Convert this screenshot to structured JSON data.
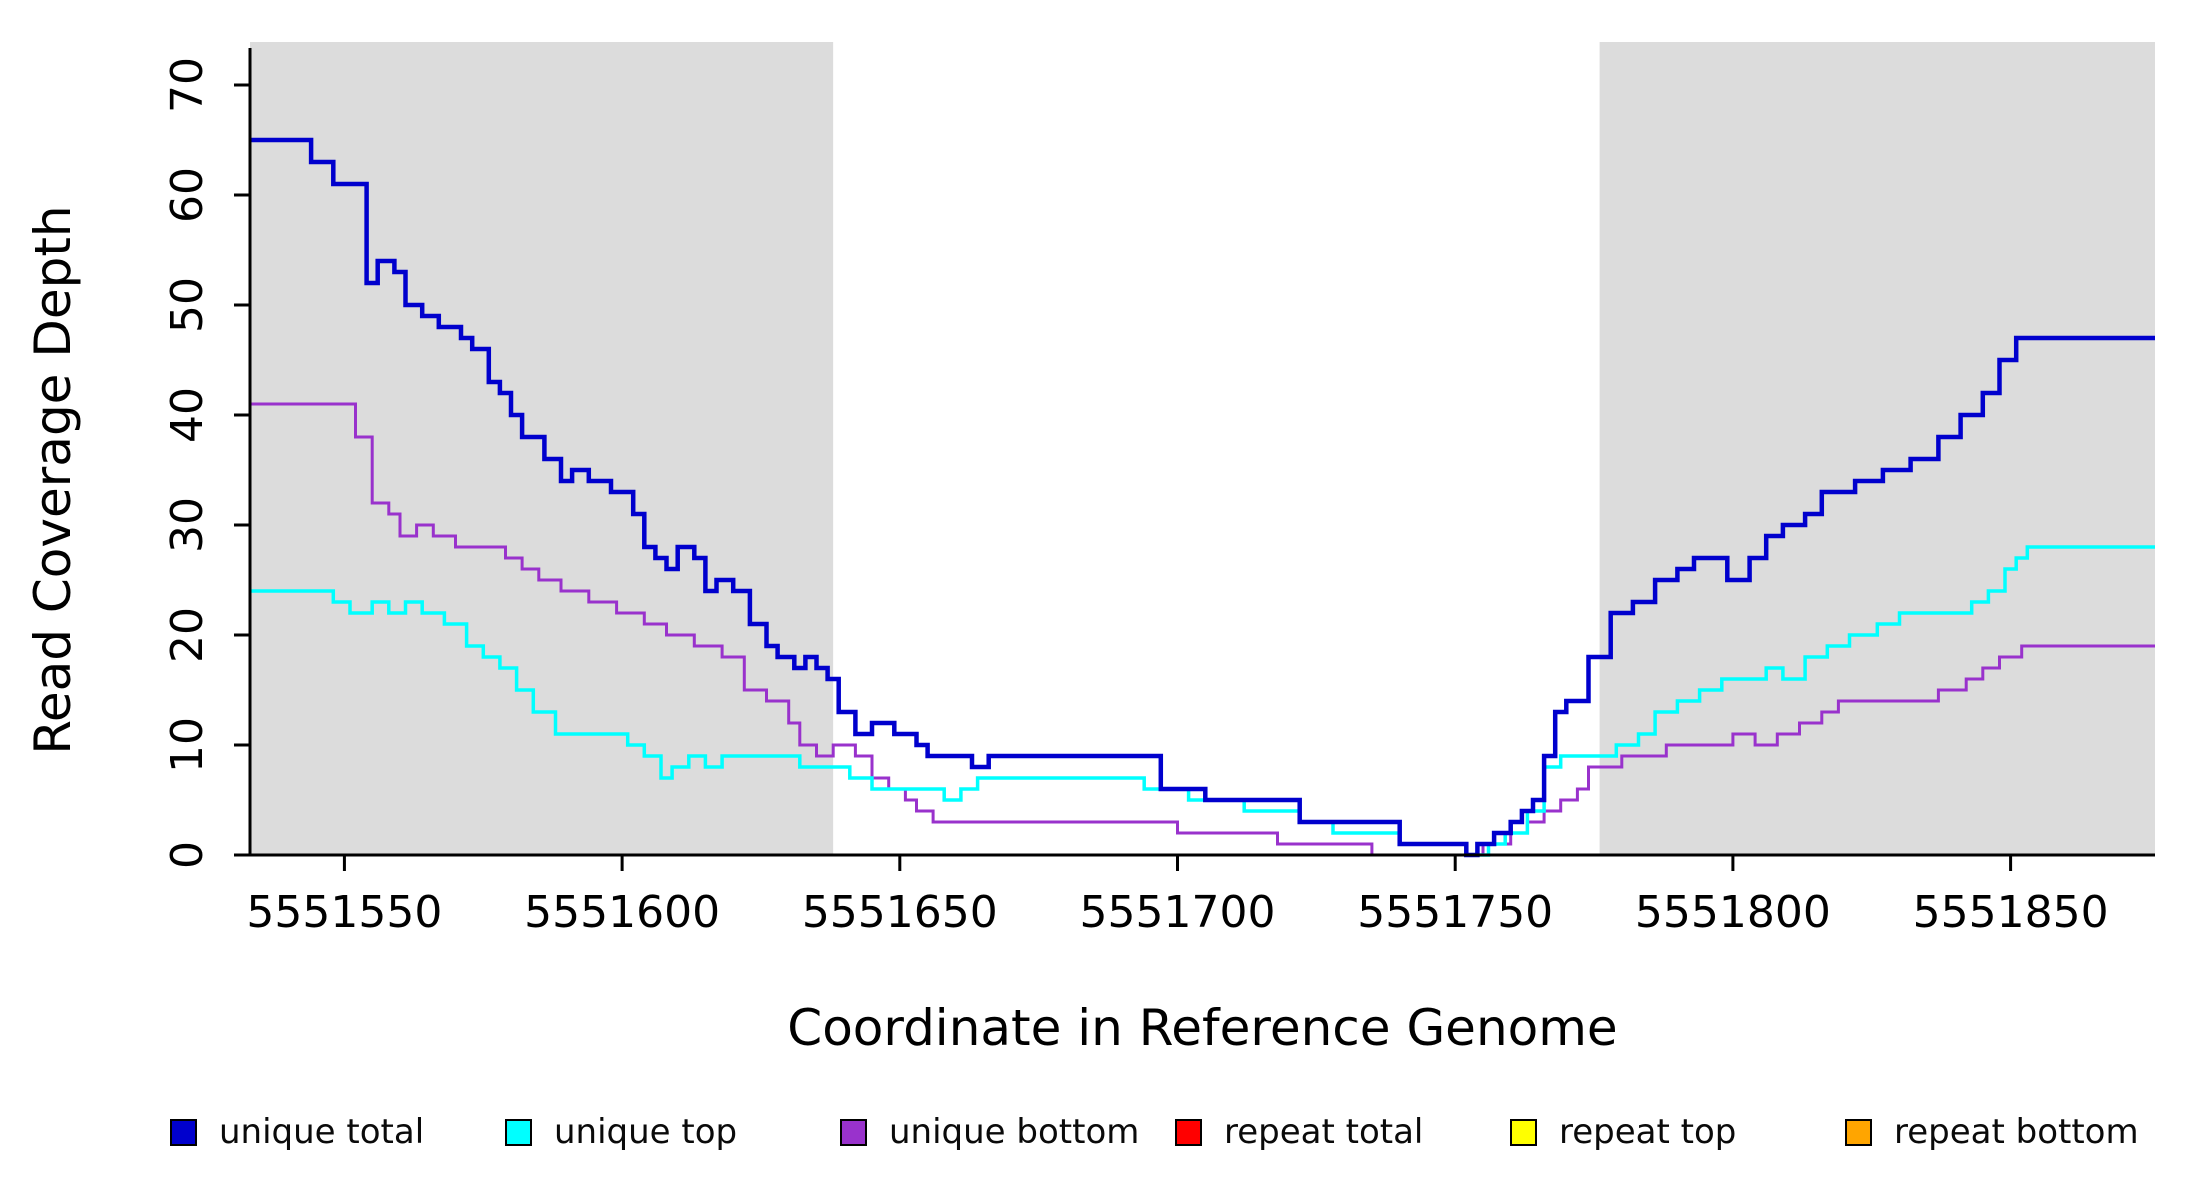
{
  "figure": {
    "kind": "step-line coverage plot"
  },
  "legend": {
    "items": [
      {
        "id": "unique-total",
        "label": "unique total",
        "color": "#0000CD"
      },
      {
        "id": "unique-top",
        "label": "unique top",
        "color": "#00FFFF"
      },
      {
        "id": "unique-bottom",
        "label": "unique bottom",
        "color": "#9932CC"
      },
      {
        "id": "repeat-total",
        "label": "repeat total",
        "color": "#FF0000"
      },
      {
        "id": "repeat-top",
        "label": "repeat top",
        "color": "#FFFF00"
      },
      {
        "id": "repeat-bottom",
        "label": "repeat bottom",
        "color": "#FFA500"
      }
    ]
  },
  "chart_data": {
    "type": "line",
    "title": "",
    "xlabel": "Coordinate in Reference Genome",
    "ylabel": "Read Coverage Depth",
    "xlim": [
      5551533,
      5551876
    ],
    "ylim": [
      0,
      70
    ],
    "xticks": [
      5551550,
      5551600,
      5551650,
      5551700,
      5551750,
      5551800,
      5551850
    ],
    "yticks": [
      0,
      10,
      20,
      30,
      40,
      50,
      60,
      70
    ],
    "grid": false,
    "legend_position": "bottom",
    "shaded_regions": [
      [
        5551533,
        5551638
      ],
      [
        5551776,
        5551876
      ]
    ],
    "colors": {
      "shade": "#DCDCDC",
      "axis": "#000000"
    },
    "series": [
      {
        "id": "repeat-total",
        "name": "repeat total",
        "color": "#FF0000",
        "width": 3,
        "points": [
          [
            5551533,
            0
          ]
        ]
      },
      {
        "id": "repeat-top",
        "name": "repeat top",
        "color": "#FFFF00",
        "width": 3,
        "points": [
          [
            5551533,
            0
          ]
        ]
      },
      {
        "id": "repeat-bottom",
        "name": "repeat bottom",
        "color": "#FFA500",
        "width": 3,
        "points": [
          [
            5551533,
            0
          ]
        ]
      },
      {
        "id": "unique-bottom",
        "name": "unique bottom",
        "color": "#9932CC",
        "width": 3,
        "points": [
          [
            5551533,
            41
          ],
          [
            5551552,
            38
          ],
          [
            5551555,
            32
          ],
          [
            5551558,
            31
          ],
          [
            5551560,
            29
          ],
          [
            5551563,
            30
          ],
          [
            5551566,
            29
          ],
          [
            5551570,
            28
          ],
          [
            5551579,
            27
          ],
          [
            5551582,
            26
          ],
          [
            5551585,
            25
          ],
          [
            5551589,
            24
          ],
          [
            5551594,
            23
          ],
          [
            5551599,
            22
          ],
          [
            5551604,
            21
          ],
          [
            5551608,
            20
          ],
          [
            5551613,
            19
          ],
          [
            5551618,
            18
          ],
          [
            5551622,
            15
          ],
          [
            5551626,
            14
          ],
          [
            5551630,
            12
          ],
          [
            5551632,
            10
          ],
          [
            5551635,
            9
          ],
          [
            5551638,
            10
          ],
          [
            5551642,
            9
          ],
          [
            5551645,
            7
          ],
          [
            5551648,
            6
          ],
          [
            5551651,
            5
          ],
          [
            5551653,
            4
          ],
          [
            5551656,
            3
          ],
          [
            5551700,
            2
          ],
          [
            5551718,
            1
          ],
          [
            5551735,
            0
          ],
          [
            5551755,
            1
          ],
          [
            5551760,
            2
          ],
          [
            5551763,
            3
          ],
          [
            5551766,
            4
          ],
          [
            5551769,
            5
          ],
          [
            5551772,
            6
          ],
          [
            5551774,
            8
          ],
          [
            5551780,
            9
          ],
          [
            5551788,
            10
          ],
          [
            5551800,
            11
          ],
          [
            5551804,
            10
          ],
          [
            5551808,
            11
          ],
          [
            5551812,
            12
          ],
          [
            5551816,
            13
          ],
          [
            5551819,
            14
          ],
          [
            5551837,
            15
          ],
          [
            5551842,
            16
          ],
          [
            5551845,
            17
          ],
          [
            5551848,
            18
          ],
          [
            5551852,
            19
          ]
        ]
      },
      {
        "id": "unique-top",
        "name": "unique top",
        "color": "#00FFFF",
        "width": 3.5,
        "points": [
          [
            5551533,
            24
          ],
          [
            5551548,
            23
          ],
          [
            5551551,
            22
          ],
          [
            5551555,
            23
          ],
          [
            5551558,
            22
          ],
          [
            5551561,
            23
          ],
          [
            5551564,
            22
          ],
          [
            5551568,
            21
          ],
          [
            5551572,
            19
          ],
          [
            5551575,
            18
          ],
          [
            5551578,
            17
          ],
          [
            5551581,
            15
          ],
          [
            5551584,
            13
          ],
          [
            5551588,
            11
          ],
          [
            5551601,
            10
          ],
          [
            5551604,
            9
          ],
          [
            5551607,
            7
          ],
          [
            5551609,
            8
          ],
          [
            5551612,
            9
          ],
          [
            5551615,
            8
          ],
          [
            5551618,
            9
          ],
          [
            5551632,
            8
          ],
          [
            5551641,
            7
          ],
          [
            5551645,
            6
          ],
          [
            5551658,
            5
          ],
          [
            5551661,
            6
          ],
          [
            5551664,
            7
          ],
          [
            5551694,
            6
          ],
          [
            5551702,
            5
          ],
          [
            5551712,
            4
          ],
          [
            5551722,
            3
          ],
          [
            5551728,
            2
          ],
          [
            5551740,
            1
          ],
          [
            5551752,
            0
          ],
          [
            5551756,
            1
          ],
          [
            5551759,
            2
          ],
          [
            5551763,
            4
          ],
          [
            5551766,
            8
          ],
          [
            5551769,
            9
          ],
          [
            5551779,
            10
          ],
          [
            5551783,
            11
          ],
          [
            5551786,
            13
          ],
          [
            5551790,
            14
          ],
          [
            5551794,
            15
          ],
          [
            5551798,
            16
          ],
          [
            5551806,
            17
          ],
          [
            5551809,
            16
          ],
          [
            5551813,
            18
          ],
          [
            5551817,
            19
          ],
          [
            5551821,
            20
          ],
          [
            5551826,
            21
          ],
          [
            5551830,
            22
          ],
          [
            5551843,
            23
          ],
          [
            5551846,
            24
          ],
          [
            5551849,
            26
          ],
          [
            5551851,
            27
          ],
          [
            5551853,
            28
          ]
        ]
      },
      {
        "id": "unique-total",
        "name": "unique total",
        "color": "#0000CD",
        "width": 4.5,
        "points": [
          [
            5551533,
            65
          ],
          [
            5551544,
            63
          ],
          [
            5551548,
            61
          ],
          [
            5551554,
            52
          ],
          [
            5551556,
            54
          ],
          [
            5551559,
            53
          ],
          [
            5551561,
            50
          ],
          [
            5551564,
            49
          ],
          [
            5551567,
            48
          ],
          [
            5551571,
            47
          ],
          [
            5551573,
            46
          ],
          [
            5551576,
            43
          ],
          [
            5551578,
            42
          ],
          [
            5551580,
            40
          ],
          [
            5551582,
            38
          ],
          [
            5551586,
            36
          ],
          [
            5551589,
            34
          ],
          [
            5551591,
            35
          ],
          [
            5551594,
            34
          ],
          [
            5551598,
            33
          ],
          [
            5551602,
            31
          ],
          [
            5551604,
            28
          ],
          [
            5551606,
            27
          ],
          [
            5551608,
            26
          ],
          [
            5551610,
            28
          ],
          [
            5551613,
            27
          ],
          [
            5551615,
            24
          ],
          [
            5551617,
            25
          ],
          [
            5551620,
            24
          ],
          [
            5551623,
            21
          ],
          [
            5551626,
            19
          ],
          [
            5551628,
            18
          ],
          [
            5551631,
            17
          ],
          [
            5551633,
            18
          ],
          [
            5551635,
            17
          ],
          [
            5551637,
            16
          ],
          [
            5551639,
            13
          ],
          [
            5551642,
            11
          ],
          [
            5551645,
            12
          ],
          [
            5551649,
            11
          ],
          [
            5551653,
            10
          ],
          [
            5551655,
            9
          ],
          [
            5551663,
            8
          ],
          [
            5551666,
            9
          ],
          [
            5551697,
            6
          ],
          [
            5551705,
            5
          ],
          [
            5551722,
            3
          ],
          [
            5551740,
            1
          ],
          [
            5551752,
            0
          ],
          [
            5551754,
            1
          ],
          [
            5551757,
            2
          ],
          [
            5551760,
            3
          ],
          [
            5551762,
            4
          ],
          [
            5551764,
            5
          ],
          [
            5551766,
            9
          ],
          [
            5551768,
            13
          ],
          [
            5551770,
            14
          ],
          [
            5551774,
            18
          ],
          [
            5551778,
            22
          ],
          [
            5551782,
            23
          ],
          [
            5551786,
            25
          ],
          [
            5551790,
            26
          ],
          [
            5551793,
            27
          ],
          [
            5551799,
            25
          ],
          [
            5551803,
            27
          ],
          [
            5551806,
            29
          ],
          [
            5551809,
            30
          ],
          [
            5551813,
            31
          ],
          [
            5551816,
            33
          ],
          [
            5551822,
            34
          ],
          [
            5551827,
            35
          ],
          [
            5551832,
            36
          ],
          [
            5551837,
            38
          ],
          [
            5551841,
            40
          ],
          [
            5551845,
            42
          ],
          [
            5551848,
            45
          ],
          [
            5551851,
            47
          ]
        ]
      }
    ]
  }
}
